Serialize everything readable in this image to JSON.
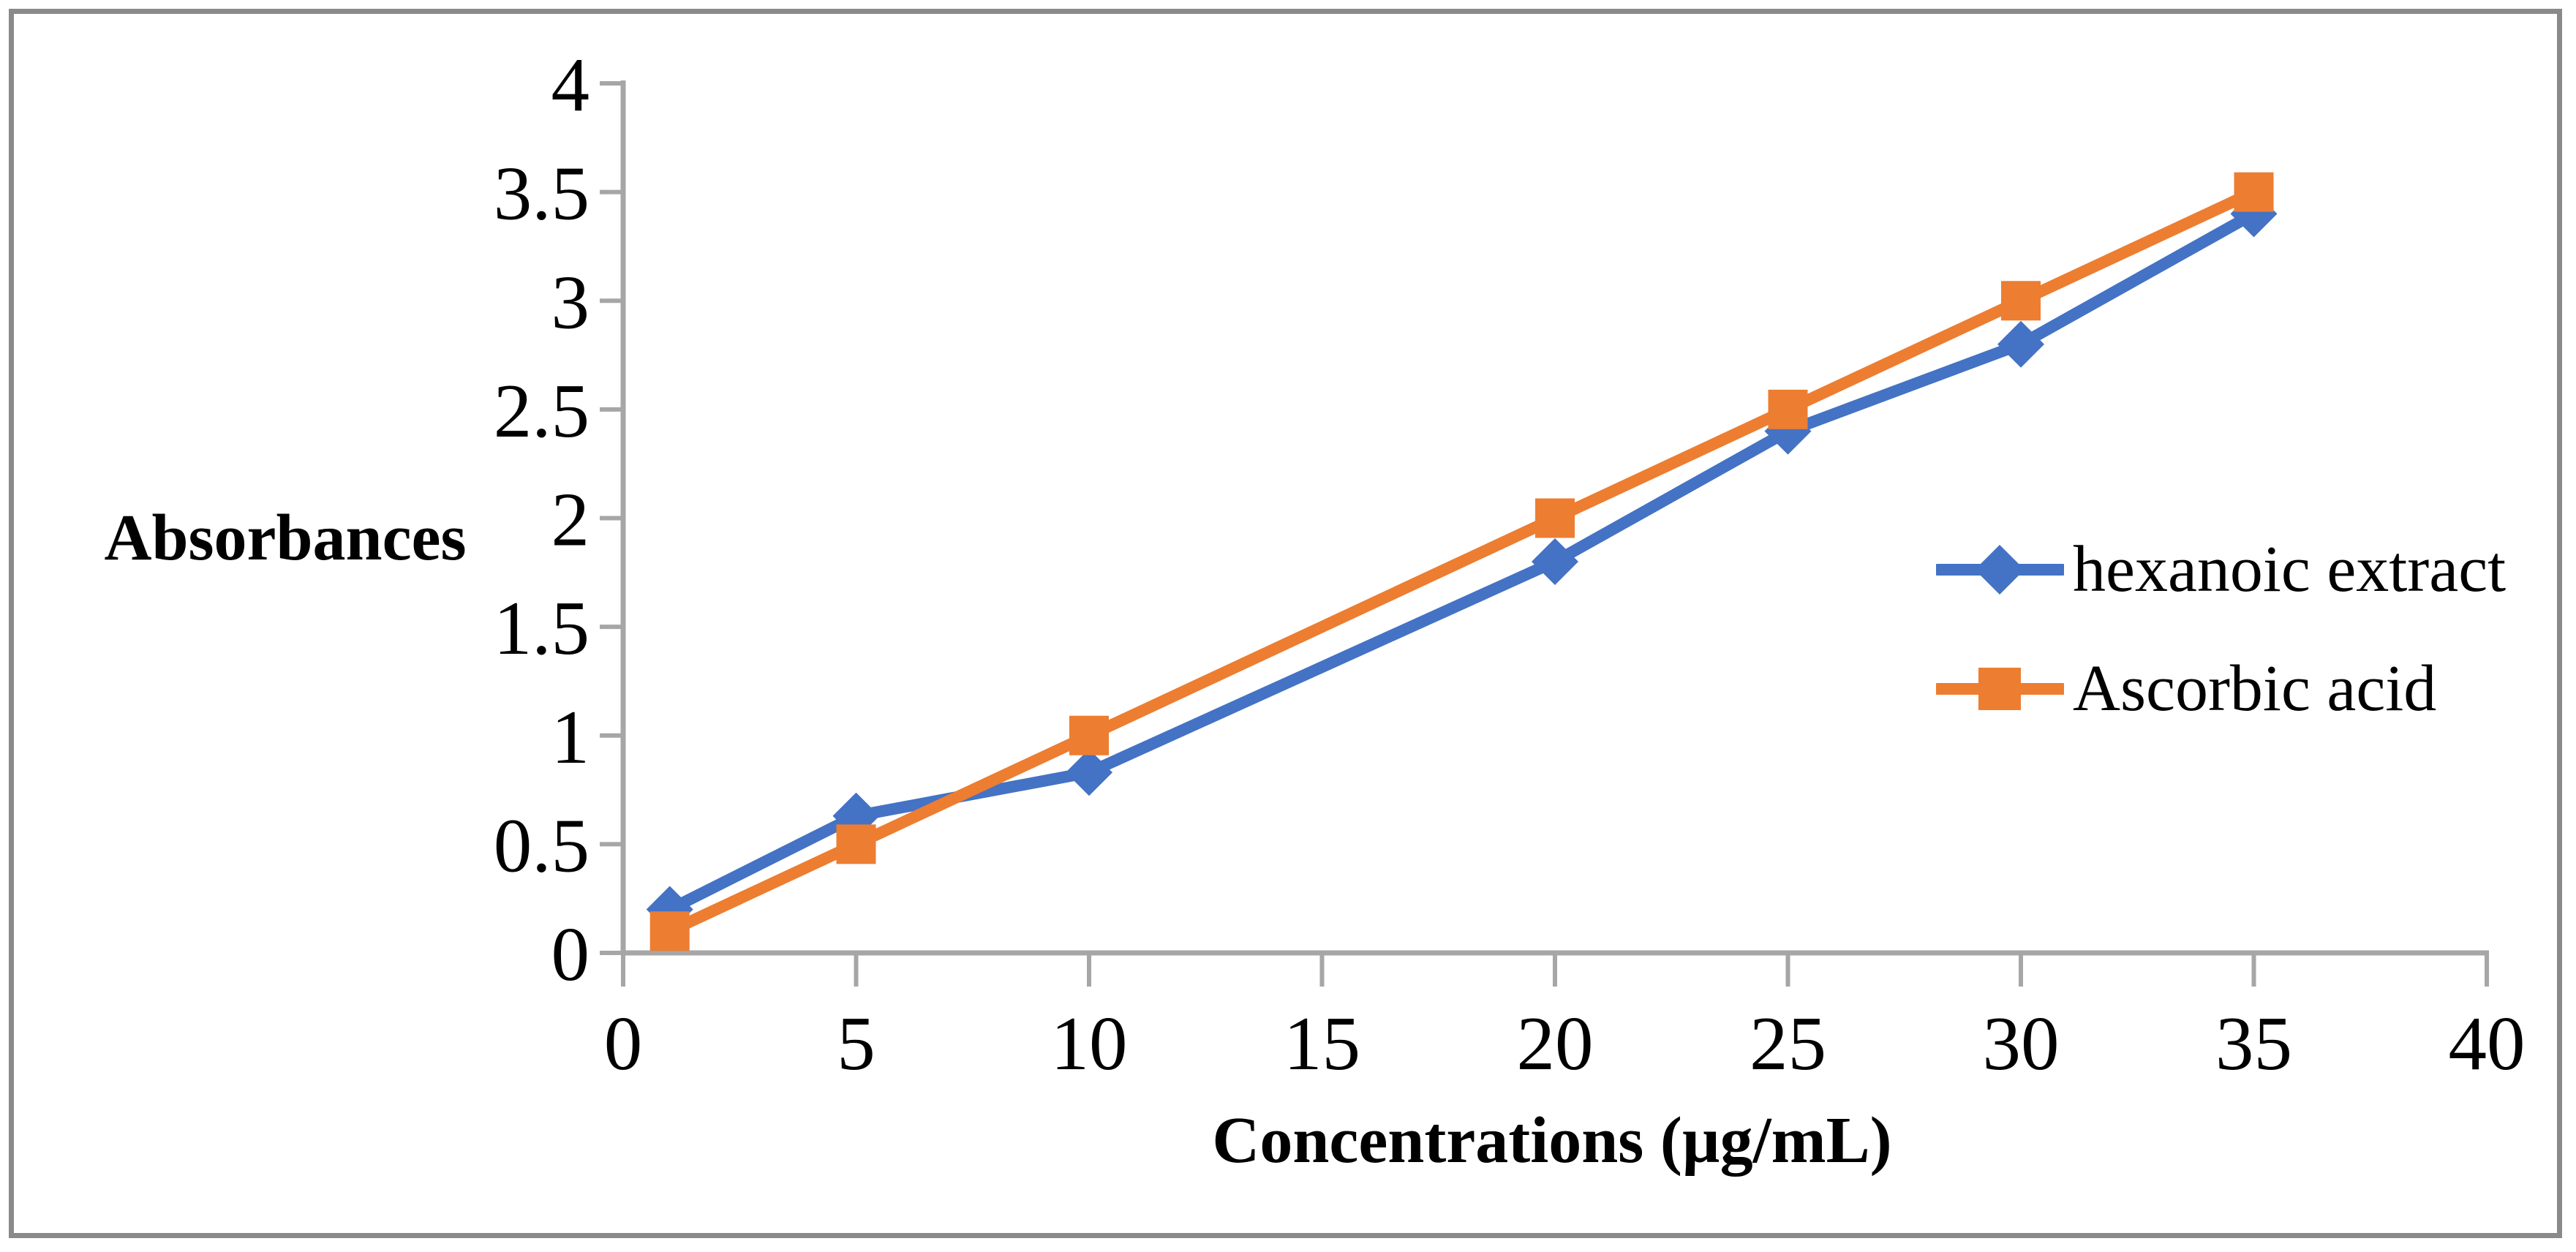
{
  "figure": {
    "border_color": "#8A8A8A",
    "background_color": "#FFFFFF"
  },
  "chart_data": {
    "type": "line",
    "title": "",
    "xlabel": "Concentrations (µg/mL)",
    "ylabel": "Absorbances",
    "x": [
      1,
      5,
      10,
      20,
      25,
      30,
      35
    ],
    "series": [
      {
        "name": "hexanoic extract",
        "color": "#4472C4",
        "marker": "diamond",
        "values": [
          0.2,
          0.63,
          0.83,
          1.8,
          2.4,
          2.8,
          3.4
        ]
      },
      {
        "name": "Ascorbic acid",
        "color": "#ED7D31",
        "marker": "square",
        "values": [
          0.1,
          0.5,
          1,
          2,
          2.5,
          3,
          3.5
        ]
      }
    ],
    "xlim": [
      0,
      40
    ],
    "ylim": [
      0,
      4
    ],
    "x_ticks": [
      0,
      5,
      10,
      15,
      20,
      25,
      30,
      35,
      40
    ],
    "y_ticks": [
      0,
      0.5,
      1,
      1.5,
      2,
      2.5,
      3,
      3.5,
      4
    ],
    "grid": false,
    "legend_position": "middle-right",
    "axis_color": "#A6A6A6",
    "tick_label_color": "#000000"
  }
}
